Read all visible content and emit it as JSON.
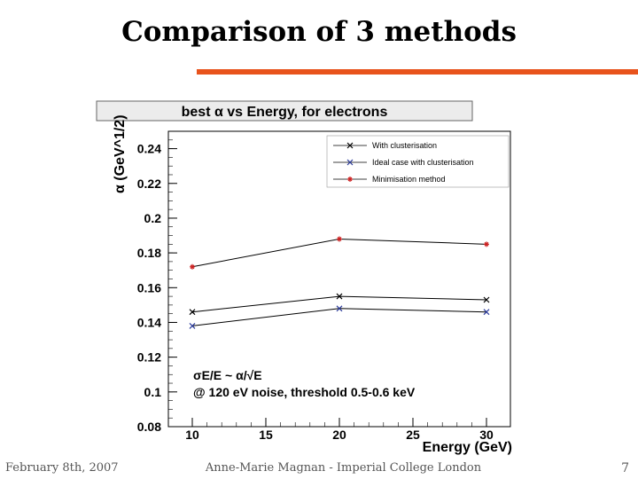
{
  "slide": {
    "title": "Comparison of 3 methods",
    "footer_left": "February 8th, 2007",
    "footer_center": "Anne-Marie Magnan - Imperial College London",
    "page_number": "7",
    "accent_color": "#e8531c"
  },
  "chart_data": {
    "type": "line",
    "title": "best α vs Energy, for electrons",
    "xlabel": "Energy (GeV)",
    "ylabel": "α (GeV^1/2)",
    "xlim": [
      10,
      30
    ],
    "ylim": [
      0.08,
      0.25
    ],
    "xticks": [
      10,
      15,
      20,
      25,
      30
    ],
    "yticks": [
      0.08,
      0.1,
      0.12,
      0.14,
      0.16,
      0.18,
      0.2,
      0.22,
      0.24
    ],
    "ytick_labels": [
      "0.08",
      "0.1",
      "0.12",
      "0.14",
      "0.16",
      "0.18",
      "0.2",
      "0.22",
      "0.24"
    ],
    "x": [
      10,
      20,
      30
    ],
    "series": [
      {
        "name": "With clusterisation",
        "values": [
          0.146,
          0.155,
          0.153
        ],
        "color": "#000000",
        "marker": "x"
      },
      {
        "name": "Ideal case with clusterisation",
        "values": [
          0.138,
          0.148,
          0.146
        ],
        "color": "#2a3a9a",
        "marker": "x"
      },
      {
        "name": "Minimisation method",
        "values": [
          0.172,
          0.188,
          0.185
        ],
        "color": "#cc2222",
        "marker": "*"
      }
    ],
    "annotation_line1": "σE/E ~ α/√E",
    "annotation_line2": "@ 120 eV noise, threshold 0.5-0.6 keV",
    "legend_position": "top-right",
    "grid": false
  }
}
